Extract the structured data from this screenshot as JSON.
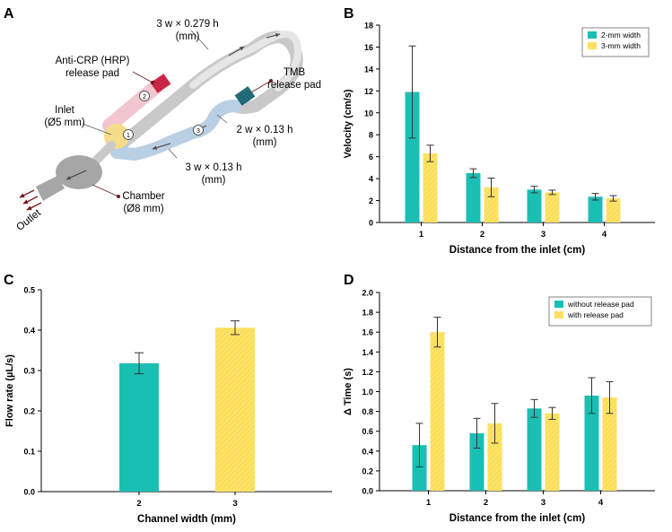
{
  "panels": {
    "A": "A",
    "B": "B",
    "C": "C",
    "D": "D"
  },
  "diagram": {
    "labels": {
      "top_channel": "3 w × 0.279 h",
      "top_channel_unit": "(mm)",
      "anti_crp_line1": "Anti-CRP (HRP)",
      "anti_crp_line2": "release pad",
      "tmb_line1": "TMB",
      "tmb_line2": "release pad",
      "inlet_line1": "Inlet",
      "inlet_line2": "(Ø5 mm)",
      "mid_channel": "2 w × 0.13 h",
      "mid_channel_unit": "(mm)",
      "low_channel": "3 w × 0.13 h",
      "low_channel_unit": "(mm)",
      "chamber_line1": "Chamber",
      "chamber_line2": "(Ø8 mm)",
      "outlet": "Outlet",
      "marker1": "1",
      "marker2": "2",
      "marker3": "3"
    },
    "colors": {
      "channel": "#d9d9d9",
      "channel_dark": "#8c8c8c",
      "pink_zone": "#f2c6cf",
      "yellow_zone": "#f5dc8a",
      "blue_zone": "#b9cfe4",
      "anti_crp_pad": "#d2294a",
      "tmb_pad": "#23717f",
      "chamber": "#a6a6a6",
      "pointer": "#6b1a1a"
    }
  },
  "chart_data": [
    {
      "panel": "B",
      "type": "bar",
      "title": "",
      "xlabel": "Distance from the inlet (cm)",
      "ylabel": "Velocity (cm/s)",
      "categories": [
        "1",
        "2",
        "3",
        "4"
      ],
      "ylim": [
        0,
        18
      ],
      "yticks": [
        0,
        2,
        4,
        6,
        8,
        10,
        12,
        14,
        16,
        18
      ],
      "ytick_labels": [
        "0",
        "2",
        "4",
        "6",
        "8",
        "10",
        "12",
        "14",
        "16",
        "18"
      ],
      "legend_position": "top-right",
      "series": [
        {
          "name": "2-mm width",
          "color": "#1abfb3",
          "values": [
            11.9,
            4.5,
            3.0,
            2.35
          ],
          "errors": [
            4.2,
            0.4,
            0.3,
            0.3
          ]
        },
        {
          "name": "3-mm width",
          "color": "#fde367",
          "values": [
            6.3,
            3.2,
            2.75,
            2.2
          ],
          "errors": [
            0.75,
            0.85,
            0.2,
            0.25
          ]
        }
      ]
    },
    {
      "panel": "C",
      "type": "bar",
      "title": "",
      "xlabel": "Channel width (mm)",
      "ylabel": "Flow rate (µL/s)",
      "categories": [
        "2",
        "3"
      ],
      "ylim": [
        0,
        0.5
      ],
      "yticks": [
        0,
        0.1,
        0.2,
        0.3,
        0.4,
        0.5
      ],
      "ytick_labels": [
        "0.0",
        "0.1",
        "0.2",
        "0.3",
        "0.4",
        "0.5"
      ],
      "legend_position": "none",
      "series": [
        {
          "name": "Flow rate",
          "values": [
            0.318,
            0.406
          ],
          "errors": [
            0.026,
            0.017
          ],
          "colors": [
            "#1abfb3",
            "#fde367"
          ]
        }
      ]
    },
    {
      "panel": "D",
      "type": "bar",
      "title": "",
      "xlabel": "Distance from the inlet (cm)",
      "ylabel": "Δ Time (s)",
      "categories": [
        "1",
        "2",
        "3",
        "4"
      ],
      "ylim": [
        0,
        2.0
      ],
      "yticks": [
        0,
        0.2,
        0.4,
        0.6,
        0.8,
        1.0,
        1.2,
        1.4,
        1.6,
        1.8,
        2.0
      ],
      "ytick_labels": [
        "0.0",
        "0.2",
        "0.4",
        "0.6",
        "0.8",
        "1.0",
        "1.2",
        "1.4",
        "1.6",
        "1.8",
        "2.0"
      ],
      "legend_position": "top-right",
      "series": [
        {
          "name": "without release pad",
          "color": "#1abfb3",
          "values": [
            0.46,
            0.58,
            0.83,
            0.96
          ],
          "errors": [
            0.22,
            0.15,
            0.09,
            0.18
          ]
        },
        {
          "name": "with release pad",
          "color": "#fde367",
          "values": [
            1.6,
            0.68,
            0.78,
            0.94
          ],
          "errors": [
            0.15,
            0.2,
            0.06,
            0.16
          ]
        }
      ]
    }
  ]
}
